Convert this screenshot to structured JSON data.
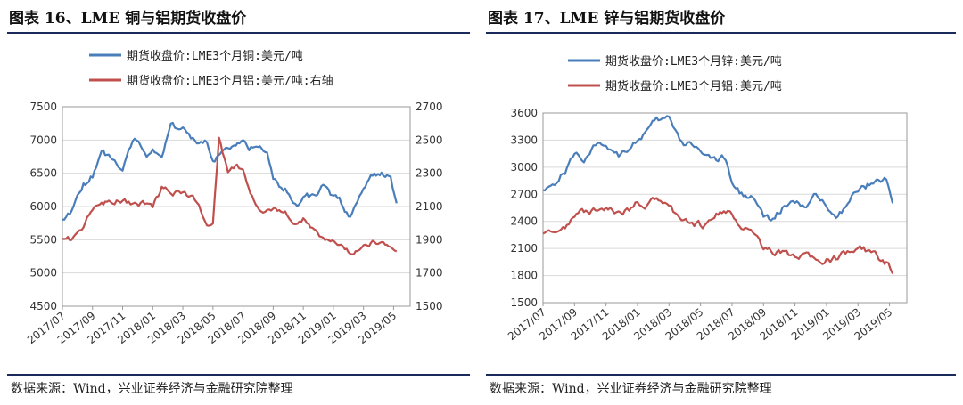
{
  "charts": [
    {
      "title": "图表 16、LME 铜与铝期货收盘价",
      "source": "数据来源：Wind，兴业证券经济与金融研究院整理"
    },
    {
      "title": "图表 17、LME 锌与铝期货收盘价",
      "source": "数据来源：Wind，兴业证券经济与金融研究院整理"
    }
  ],
  "chart_data": [
    {
      "type": "line",
      "x_tick_labels": [
        "2017/07",
        "2017/09",
        "2017/11",
        "2018/01",
        "2018/03",
        "2018/05",
        "2018/07",
        "2018/09",
        "2018/11",
        "2019/01",
        "2019/03",
        "2019/05"
      ],
      "y_left": {
        "ticks": [
          4500,
          5000,
          5500,
          6000,
          6500,
          7000,
          7500
        ],
        "lim": [
          4500,
          7500
        ]
      },
      "y_right": {
        "ticks": [
          1500,
          1700,
          1900,
          2100,
          2300,
          2500,
          2700
        ],
        "lim": [
          1500,
          2700
        ]
      },
      "grid": true,
      "legend_position": "top-left",
      "series": [
        {
          "name": "期货收盘价:LME3个月铜:美元/吨",
          "color": "#4a7ebb",
          "axis": "left",
          "x": [
            0,
            0.3,
            0.7,
            1.0,
            1.3,
            1.6,
            2.0,
            2.4,
            2.8,
            3.0,
            3.3,
            3.6,
            4.0,
            4.4,
            4.8,
            5.0,
            5.3,
            5.7,
            6.0,
            6.2,
            6.5,
            6.8,
            7.0,
            7.4,
            7.8,
            8.0,
            8.3,
            8.6,
            8.9,
            9.2,
            9.5,
            9.8,
            10.0,
            10.3,
            10.6,
            10.9,
            11.1
          ],
          "values": [
            5850,
            5900,
            6300,
            6450,
            6800,
            6750,
            6600,
            7050,
            6800,
            6900,
            6700,
            7200,
            7150,
            7000,
            6950,
            6750,
            6800,
            6850,
            7050,
            6900,
            6850,
            6850,
            6400,
            6250,
            6050,
            6100,
            6150,
            6300,
            6200,
            6100,
            5850,
            6000,
            6300,
            6450,
            6500,
            6500,
            6050
          ]
        },
        {
          "name": "期货收盘价:LME3个月铝:美元/吨:右轴",
          "color": "#c0504d",
          "axis": "right",
          "x": [
            0,
            0.3,
            0.7,
            1.0,
            1.3,
            1.6,
            2.0,
            2.4,
            2.8,
            3.0,
            3.3,
            3.6,
            4.0,
            4.4,
            4.6,
            4.8,
            5.0,
            5.2,
            5.5,
            5.8,
            6.0,
            6.3,
            6.6,
            7.0,
            7.4,
            7.8,
            8.0,
            8.3,
            8.6,
            8.9,
            9.2,
            9.5,
            9.8,
            10.0,
            10.3,
            10.6,
            10.9,
            11.1
          ],
          "values": [
            1920,
            1900,
            1950,
            2090,
            2120,
            2130,
            2140,
            2110,
            2120,
            2090,
            2210,
            2180,
            2180,
            2140,
            2080,
            2000,
            1990,
            2500,
            2320,
            2340,
            2320,
            2160,
            2080,
            2090,
            2060,
            2000,
            2020,
            1960,
            1920,
            1900,
            1880,
            1830,
            1840,
            1870,
            1880,
            1870,
            1860,
            1830
          ]
        }
      ]
    },
    {
      "type": "line",
      "x_tick_labels": [
        "2017/07",
        "2017/09",
        "2017/11",
        "2018/01",
        "2018/03",
        "2018/05",
        "2018/07",
        "2018/09",
        "2018/11",
        "2019/01",
        "2019/03",
        "2019/05"
      ],
      "y": {
        "ticks": [
          1500,
          1800,
          2100,
          2400,
          2700,
          3000,
          3300,
          3600
        ],
        "lim": [
          1500,
          3600
        ]
      },
      "grid": true,
      "legend_position": "top-left",
      "series": [
        {
          "name": "期货收盘价:LME3个月锌:美元/吨",
          "color": "#4a7ebb",
          "x": [
            0,
            0.3,
            0.7,
            1.0,
            1.3,
            1.6,
            2.0,
            2.4,
            2.8,
            3.0,
            3.3,
            3.6,
            4.0,
            4.4,
            4.8,
            5.2,
            5.5,
            5.8,
            6.0,
            6.3,
            6.6,
            7.0,
            7.3,
            7.6,
            8.0,
            8.3,
            8.6,
            9.0,
            9.3,
            9.6,
            10.0,
            10.3,
            10.6,
            10.9,
            11.1
          ],
          "values": [
            2780,
            2800,
            2950,
            3150,
            3100,
            3200,
            3250,
            3150,
            3250,
            3300,
            3400,
            3500,
            3550,
            3250,
            3250,
            3150,
            3050,
            3100,
            2800,
            2700,
            2700,
            2450,
            2400,
            2550,
            2600,
            2550,
            2650,
            2600,
            2500,
            2550,
            2750,
            2800,
            2900,
            2850,
            2600
          ]
        },
        {
          "name": "期货收盘价:LME3个月铝:美元/吨",
          "color": "#c0504d",
          "x": [
            0,
            0.3,
            0.7,
            1.0,
            1.3,
            1.6,
            2.0,
            2.4,
            2.8,
            3.0,
            3.3,
            3.6,
            4.0,
            4.4,
            4.8,
            5.2,
            5.5,
            5.8,
            6.0,
            6.3,
            6.6,
            7.0,
            7.3,
            7.6,
            8.0,
            8.3,
            8.6,
            9.0,
            9.3,
            9.6,
            10.0,
            10.3,
            10.6,
            10.9,
            11.1
          ],
          "values": [
            2300,
            2300,
            2350,
            2450,
            2500,
            2500,
            2550,
            2480,
            2550,
            2600,
            2580,
            2650,
            2600,
            2400,
            2380,
            2350,
            2450,
            2500,
            2480,
            2350,
            2280,
            2100,
            2050,
            2060,
            2030,
            2000,
            1990,
            1980,
            2000,
            2050,
            2100,
            2080,
            2000,
            1950,
            1820
          ]
        }
      ]
    }
  ]
}
